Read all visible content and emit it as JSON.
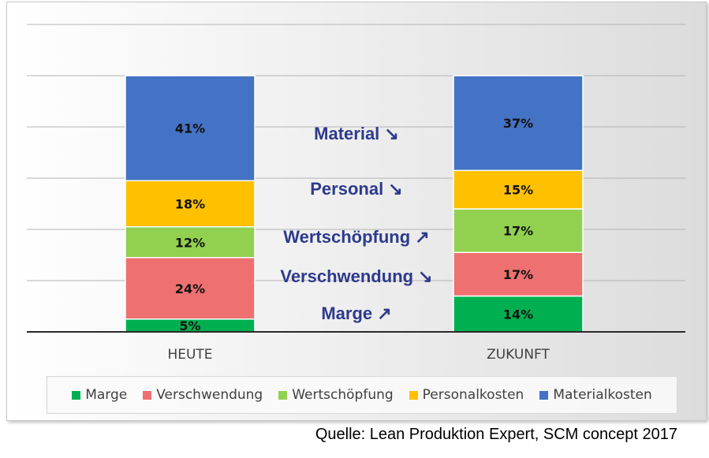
{
  "chart_data": {
    "type": "bar",
    "stacked": true,
    "categories": [
      "HEUTE",
      "ZUKUNFT"
    ],
    "series": [
      {
        "name": "Marge",
        "values": [
          5,
          14
        ],
        "color": "#00b050"
      },
      {
        "name": "Verschwendung",
        "values": [
          24,
          17
        ],
        "color": "#ef7070"
      },
      {
        "name": "Wertschöpfung",
        "values": [
          12,
          17
        ],
        "color": "#92d050"
      },
      {
        "name": "Personalkosten",
        "values": [
          18,
          15
        ],
        "color": "#ffc000"
      },
      {
        "name": "Materialkosten",
        "values": [
          41,
          37
        ],
        "color": "#4472c4"
      }
    ],
    "data_label_suffix": "%",
    "grid": true,
    "legend_position": "bottom",
    "annotations": [
      {
        "text": "Material",
        "arrow": "down"
      },
      {
        "text": "Personal",
        "arrow": "down"
      },
      {
        "text": "Wertschöpfung",
        "arrow": "up"
      },
      {
        "text": "Verschwendung",
        "arrow": "down"
      },
      {
        "text": "Marge",
        "arrow": "up"
      }
    ],
    "annotation_color": "#2e3a8c"
  },
  "source": "Quelle: Lean Produktion Expert, SCM concept 2017"
}
